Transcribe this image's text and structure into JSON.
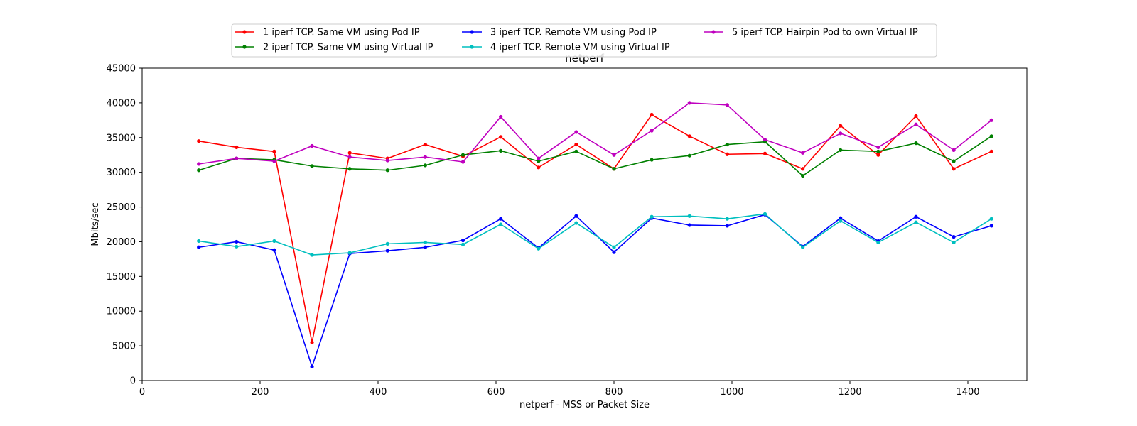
{
  "chart_data": {
    "type": "line",
    "title": "netperf",
    "xlabel": "netperf - MSS or Packet Size",
    "ylabel": "Mbits/sec",
    "xlim": [
      0,
      1500
    ],
    "ylim": [
      0,
      45000
    ],
    "x_ticks": [
      0,
      200,
      400,
      600,
      800,
      1000,
      1200,
      1400
    ],
    "y_ticks": [
      0,
      5000,
      10000,
      15000,
      20000,
      25000,
      30000,
      35000,
      40000,
      45000
    ],
    "grid": false,
    "legend_position": "top-center",
    "x": [
      96,
      160,
      224,
      288,
      352,
      416,
      480,
      544,
      608,
      672,
      736,
      800,
      864,
      928,
      992,
      1056,
      1120,
      1184,
      1248,
      1312,
      1376,
      1440
    ],
    "series": [
      {
        "name": "1 iperf TCP. Same VM using Pod IP",
        "color": "#ff0000",
        "values": [
          34500,
          33600,
          33000,
          5500,
          32800,
          32000,
          34000,
          32300,
          35100,
          30700,
          34000,
          30500,
          38300,
          35200,
          32600,
          32700,
          30500,
          36700,
          32500,
          38100,
          30500,
          33000
        ]
      },
      {
        "name": "2 iperf TCP. Same VM using Virtual IP",
        "color": "#008000",
        "values": [
          30300,
          32000,
          31800,
          30900,
          30500,
          30300,
          31000,
          32500,
          33100,
          31600,
          33000,
          30500,
          31800,
          32400,
          34000,
          34400,
          29500,
          33200,
          33000,
          34200,
          31600,
          35200
        ]
      },
      {
        "name": "3 iperf TCP. Remote VM using Pod IP",
        "color": "#0000ff",
        "values": [
          19200,
          20000,
          18800,
          2000,
          18300,
          18700,
          19200,
          20200,
          23300,
          19100,
          23700,
          18500,
          23400,
          22400,
          22300,
          23900,
          19300,
          23400,
          20100,
          23600,
          20700,
          22300
        ]
      },
      {
        "name": "4 iperf TCP. Remote VM using Virtual IP",
        "color": "#00bfbf",
        "values": [
          20100,
          19300,
          20100,
          18100,
          18400,
          19700,
          19900,
          19600,
          22500,
          19000,
          22700,
          19200,
          23600,
          23700,
          23300,
          24000,
          19200,
          23000,
          19900,
          22800,
          19900,
          23300
        ]
      },
      {
        "name": "5 iperf TCP. Hairpin Pod to own Virtual IP",
        "color": "#bf00bf",
        "values": [
          31200,
          32000,
          31600,
          33800,
          32200,
          31700,
          32200,
          31500,
          38000,
          32000,
          35800,
          32500,
          36000,
          40000,
          39700,
          34700,
          32800,
          35600,
          33600,
          36900,
          33200,
          37500
        ]
      }
    ]
  }
}
